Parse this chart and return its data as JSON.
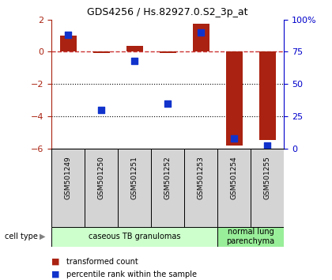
{
  "title": "GDS4256 / Hs.82927.0.S2_3p_at",
  "samples": [
    "GSM501249",
    "GSM501250",
    "GSM501251",
    "GSM501252",
    "GSM501253",
    "GSM501254",
    "GSM501255"
  ],
  "transformed_count": [
    1.0,
    -0.05,
    0.35,
    -0.05,
    1.75,
    -5.8,
    -5.5
  ],
  "percentile_rank": [
    88,
    30,
    68,
    35,
    90,
    8,
    2
  ],
  "cell_types": [
    {
      "label": "caseous TB granulomas",
      "start": 0,
      "end": 5,
      "color": "#ccffcc"
    },
    {
      "label": "normal lung\nparenchyma",
      "start": 5,
      "end": 7,
      "color": "#99ee99"
    }
  ],
  "ylim_left": [
    -6,
    2
  ],
  "yticks_left": [
    -6,
    -4,
    -2,
    0,
    2
  ],
  "ylim_right": [
    0,
    100
  ],
  "yticks_right": [
    0,
    25,
    50,
    75,
    100
  ],
  "ytick_labels_right": [
    "0",
    "25",
    "50",
    "75",
    "100%"
  ],
  "bar_color": "#aa2211",
  "scatter_color": "#1133cc",
  "dashed_line_color": "#cc3333",
  "grid_color": "#000000",
  "bg_color": "#ffffff",
  "bar_width": 0.5,
  "scatter_size": 40,
  "legend_labels": [
    "transformed count",
    "percentile rank within the sample"
  ],
  "cell_type_label": "cell type"
}
